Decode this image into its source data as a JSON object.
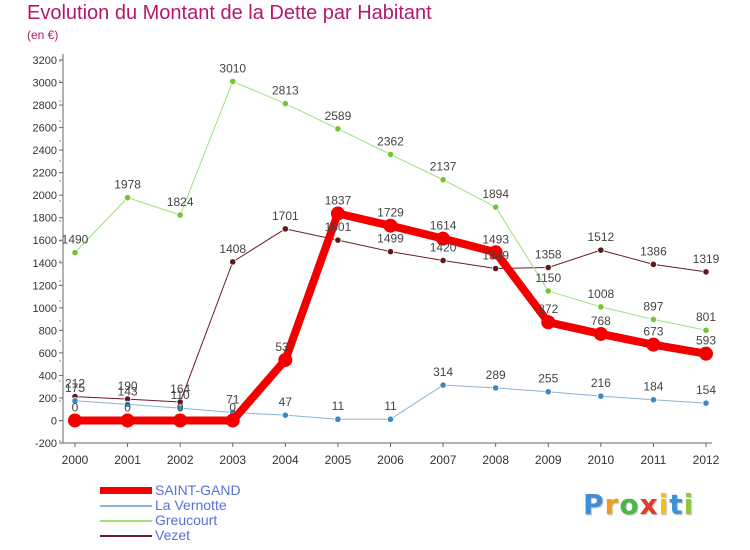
{
  "title": "Evolution du Montant de la Dette par Habitant",
  "subtitle": "(en €)",
  "chart_data": {
    "type": "line",
    "x": [
      "2000",
      "2001",
      "2002",
      "2003",
      "2004",
      "2005",
      "2006",
      "2007",
      "2008",
      "2009",
      "2010",
      "2011",
      "2012"
    ],
    "ylim": [
      -200,
      3200
    ],
    "yticks": [
      -200,
      0,
      200,
      400,
      600,
      800,
      1000,
      1200,
      1400,
      1600,
      1800,
      2000,
      2200,
      2400,
      2600,
      2800,
      3000,
      3200
    ],
    "grid": false,
    "legend_position": "bottom-left",
    "series": [
      {
        "name": "Vezet",
        "color": "#6b1a2a",
        "marker": "#5e1a1a",
        "width": 1,
        "values": [
          212,
          190,
          164,
          1408,
          1701,
          1601,
          1499,
          1420,
          1349,
          1358,
          1512,
          1386,
          1319
        ],
        "labels": [
          "212",
          "190",
          "164",
          "1408",
          "1701",
          "1601",
          "1499",
          "1420",
          "1349",
          "1358",
          "1512",
          "1386",
          "1319"
        ]
      },
      {
        "name": "Greucourt",
        "color": "#9ee07a",
        "marker": "#74c534",
        "width": 1,
        "values": [
          1490,
          1978,
          1824,
          3010,
          2813,
          2589,
          2362,
          2137,
          1894,
          1150,
          1008,
          897,
          801
        ],
        "labels": [
          "1490",
          "1978",
          "1824",
          "3010",
          "2813",
          "2589",
          "2362",
          "2137",
          "1894",
          "1150",
          "1008",
          "897",
          "801"
        ]
      },
      {
        "name": "La Vernotte",
        "color": "#8ab4d8",
        "marker": "#3c8ac4",
        "width": 1,
        "values": [
          175,
          143,
          110,
          71,
          47,
          11,
          11,
          314,
          289,
          255,
          216,
          184,
          154
        ],
        "labels": [
          "175",
          "143",
          "110",
          "71",
          "47",
          "11",
          "11",
          "314",
          "289",
          "255",
          "216",
          "184",
          "154"
        ]
      },
      {
        "name": "SAINT-GAND",
        "color": "#f20000",
        "marker": "#f20000",
        "width": 8,
        "values": [
          0,
          0,
          0,
          0,
          537,
          1837,
          1729,
          1614,
          1493,
          872,
          768,
          673,
          593
        ],
        "labels": [
          "0",
          "0",
          "0",
          "0",
          "537",
          "1837",
          "1729",
          "1614",
          "1493",
          "872",
          "768",
          "673",
          "593"
        ]
      }
    ]
  },
  "legend": [
    {
      "name": "SAINT-GAND",
      "color": "#f20000",
      "text_color": "#5a6fd8",
      "thick": true
    },
    {
      "name": "La Vernotte",
      "color": "#8ab4d8",
      "text_color": "#5a6fd8",
      "thick": false
    },
    {
      "name": "Greucourt",
      "color": "#9ee07a",
      "text_color": "#5a6fd8",
      "thick": false
    },
    {
      "name": "Vezet",
      "color": "#6b1a2a",
      "text_color": "#5a6fd8",
      "thick": false
    }
  ],
  "logo": {
    "letters": [
      "P",
      "r",
      "o",
      "x",
      "i",
      "t",
      "i"
    ],
    "colors": [
      "#3e8fd6",
      "#f29a1a",
      "#49b84a",
      "#e23b2a",
      "#f2c21a",
      "#3e8fd6",
      "#8fc93a"
    ]
  }
}
